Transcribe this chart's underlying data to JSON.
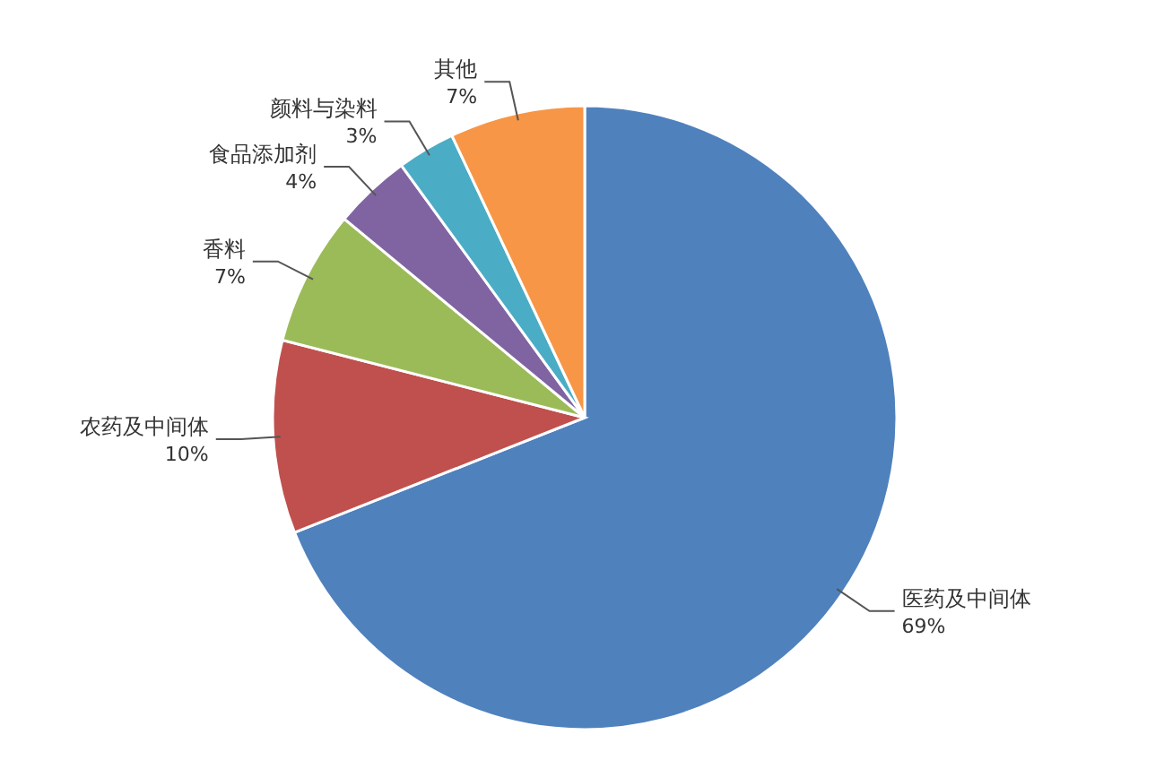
{
  "chart_data": {
    "type": "pie",
    "categories": [
      "医药及中间体",
      "农药及中间体",
      "香料",
      "食品添加剂",
      "颜料与染料",
      "其他"
    ],
    "values": [
      69,
      10,
      7,
      4,
      3,
      7
    ],
    "colors": [
      "#4f81bd",
      "#c0504d",
      "#9bbb59",
      "#8064a2",
      "#4bacc6",
      "#f79646"
    ],
    "value_labels": [
      "69%",
      "10%",
      "7%",
      "4%",
      "3%",
      "7%"
    ]
  }
}
